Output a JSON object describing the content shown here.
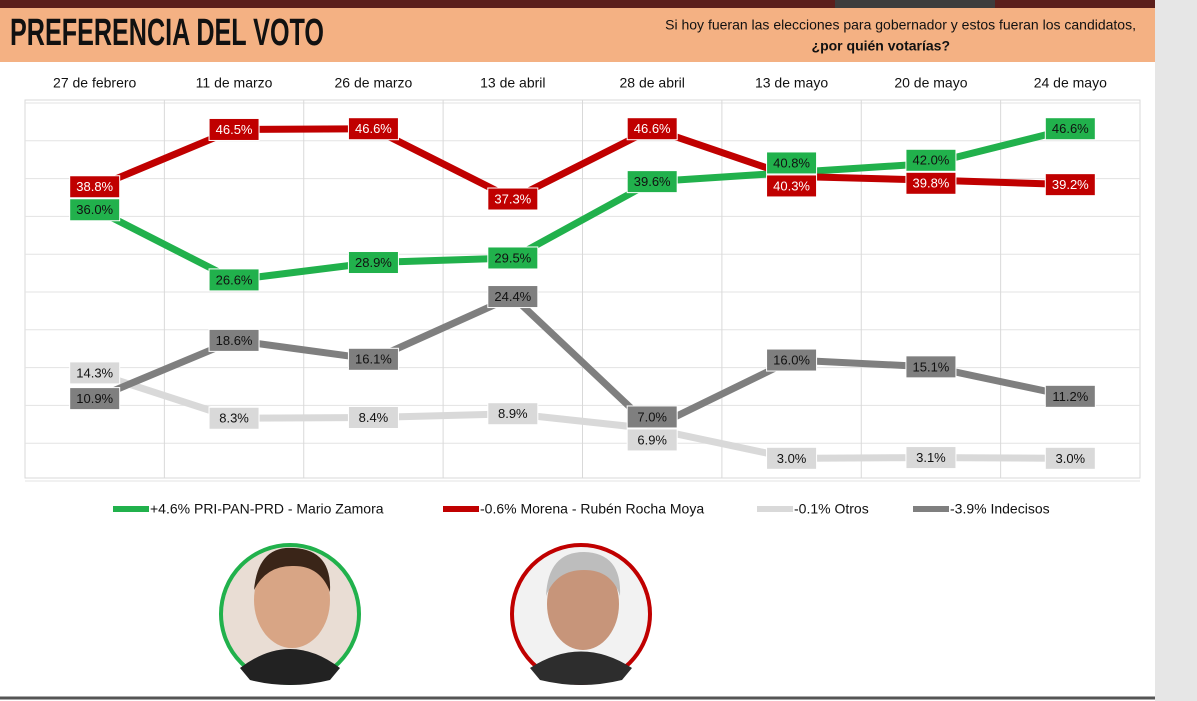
{
  "chart_data": {
    "type": "line",
    "title": "PREFERENCIA DEL VOTO",
    "subtitle": "Si hoy fueran las elecciones para gobernador y estos fueran los candidatos,",
    "subtitle_question": "¿por quién votarías?",
    "categories": [
      "27 de febrero",
      "11 de marzo",
      "26 de marzo",
      "13 de abril",
      "28 de abril",
      "13 de mayo",
      "20 de mayo",
      "24 de mayo"
    ],
    "ylim": [
      0,
      50
    ],
    "yticks": [
      0,
      5,
      10,
      15,
      20,
      25,
      30,
      35,
      40,
      45,
      50
    ],
    "grid": true,
    "series": [
      {
        "name": "+4.6% PRI-PAN-PRD - Mario Zamora",
        "color": "#21b14c",
        "values": [
          36.0,
          26.6,
          28.9,
          29.5,
          39.6,
          40.8,
          42.0,
          46.6
        ],
        "value_labels": [
          "36.0%",
          "26.6%",
          "28.9%",
          "29.5%",
          "39.6%",
          "40.8%",
          "42.0%",
          "46.6%"
        ]
      },
      {
        "name": "-0.6% Morena - Rubén Rocha Moya",
        "color": "#c00000",
        "values": [
          38.8,
          46.5,
          46.6,
          37.3,
          46.6,
          40.3,
          39.8,
          39.2
        ],
        "value_labels": [
          "38.8%",
          "46.5%",
          "46.6%",
          "37.3%",
          "46.6%",
          "40.3%",
          "39.8%",
          "39.2%"
        ]
      },
      {
        "name": "-0.1% Otros",
        "color": "#d9d9d9",
        "values": [
          14.3,
          8.3,
          8.4,
          8.9,
          6.9,
          3.0,
          3.1,
          3.0
        ],
        "value_labels": [
          "14.3%",
          "8.3%",
          "8.4%",
          "8.9%",
          "6.9%",
          "3.0%",
          "3.1%",
          "3.0%"
        ]
      },
      {
        "name": "-3.9% Indecisos",
        "color": "#7f7f7f",
        "values": [
          10.9,
          18.6,
          16.1,
          24.4,
          7.0,
          16.0,
          15.1,
          11.2
        ],
        "value_labels": [
          "10.9%",
          "18.6%",
          "16.1%",
          "24.4%",
          "7.0%",
          "16.0%",
          "15.1%",
          "11.2%"
        ]
      }
    ]
  }
}
